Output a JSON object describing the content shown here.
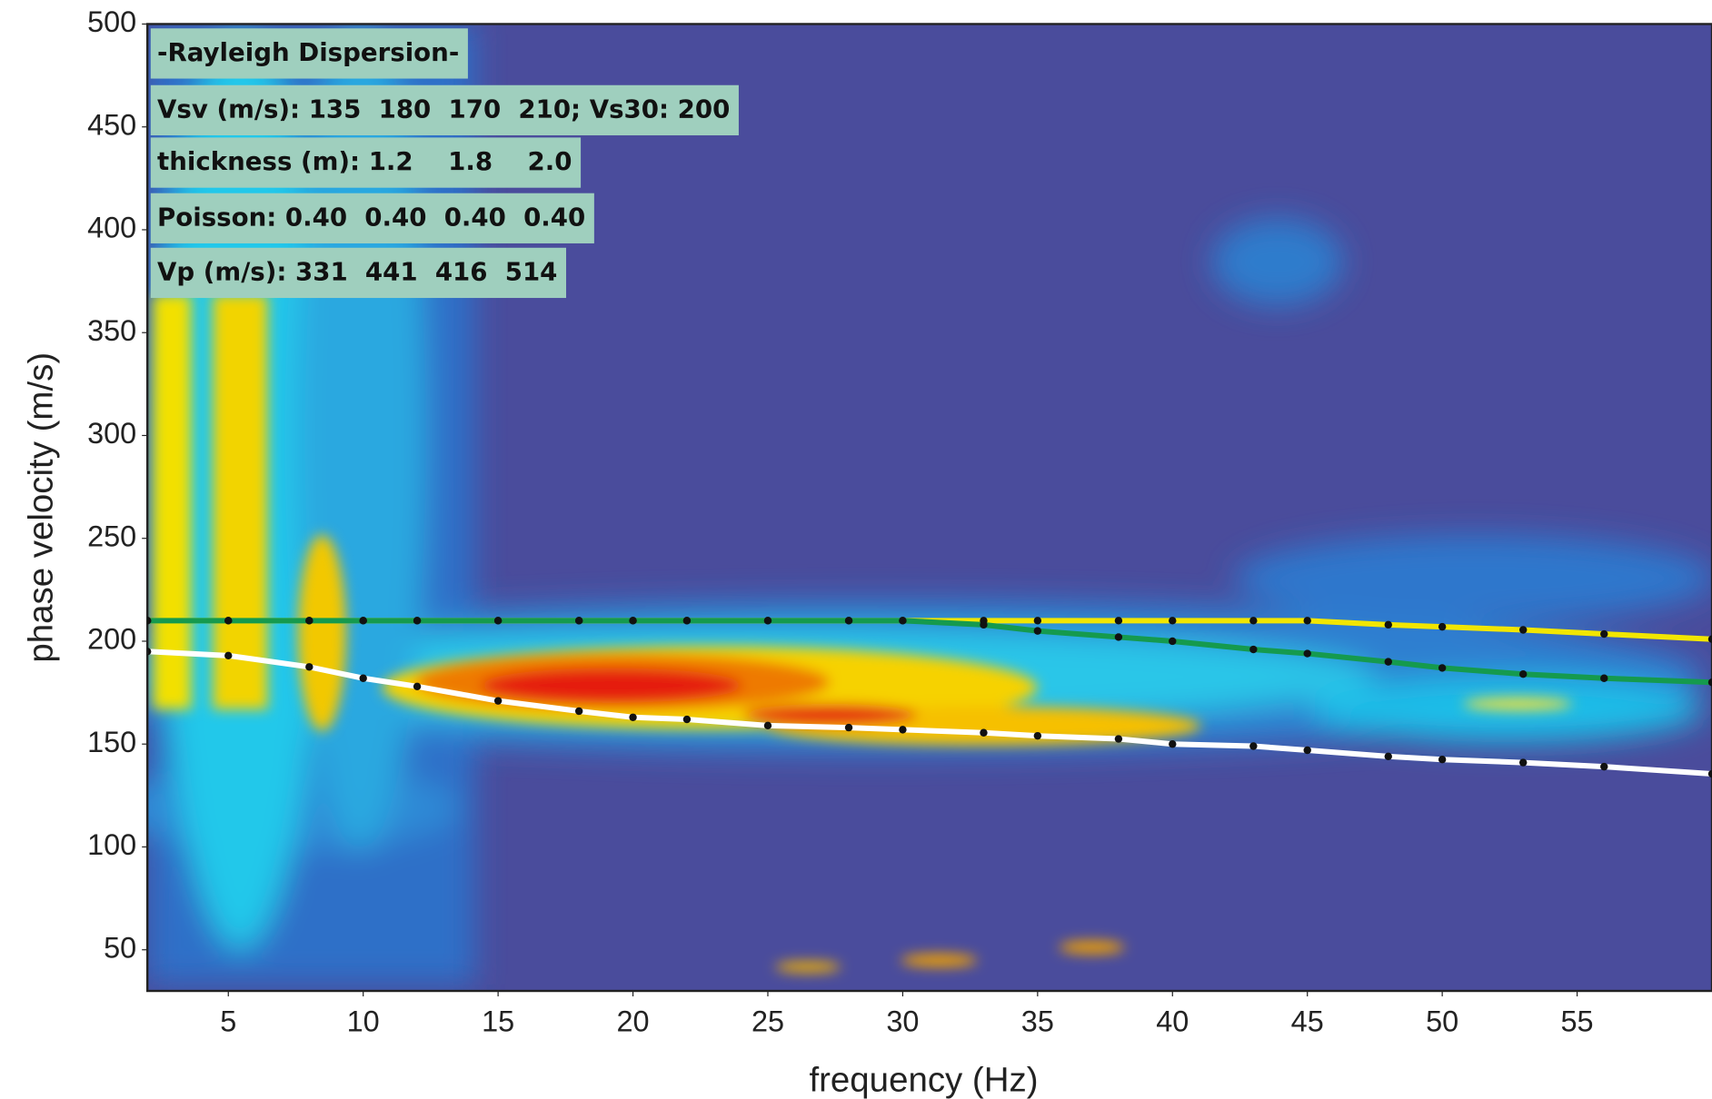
{
  "chart_data": {
    "type": "line",
    "xlabel": "frequency (Hz)",
    "ylabel": "phase velocity (m/s)",
    "annotations": [
      "-Rayleigh Dispersion-",
      "Vsv (m/s): 135  180  170  210; Vs30: 200",
      "thickness (m): 1.2    1.8    2.0",
      "Poisson: 0.40  0.40  0.40  0.40",
      "Vp (m/s): 331  441  416  514"
    ],
    "x": [
      2,
      5,
      8,
      10,
      12,
      15,
      18,
      20,
      22,
      25,
      28,
      30,
      33,
      35,
      38,
      40,
      43,
      45,
      48,
      50,
      53,
      56,
      60
    ],
    "series": [
      {
        "color": "#f2e600",
        "values": [
          210,
          210,
          210,
          210,
          210,
          210,
          210,
          210,
          210,
          210,
          210,
          210,
          210,
          210,
          210,
          210,
          210,
          210,
          208,
          207,
          205.5,
          203.5,
          201
        ]
      },
      {
        "color": "#159a4e",
        "values": [
          210,
          210,
          210,
          210,
          210,
          210,
          210,
          210,
          210,
          210,
          210,
          210,
          208,
          205,
          202,
          200,
          196,
          194,
          190,
          187,
          184,
          182,
          180
        ]
      },
      {
        "color": "#ffffff",
        "values": [
          195,
          193,
          187.5,
          182,
          178,
          171,
          166,
          163,
          162,
          159,
          158,
          157,
          155.5,
          154,
          152.5,
          150,
          149,
          147,
          144,
          142.5,
          141,
          139,
          135.5
        ]
      }
    ],
    "marker_color": "#111111",
    "xlim": [
      2,
      60
    ],
    "ylim": [
      30,
      500
    ],
    "xticks": [
      5,
      10,
      15,
      20,
      25,
      30,
      35,
      40,
      45,
      50,
      55
    ],
    "yticks": [
      50,
      100,
      150,
      200,
      250,
      300,
      350,
      400,
      450,
      500
    ]
  }
}
